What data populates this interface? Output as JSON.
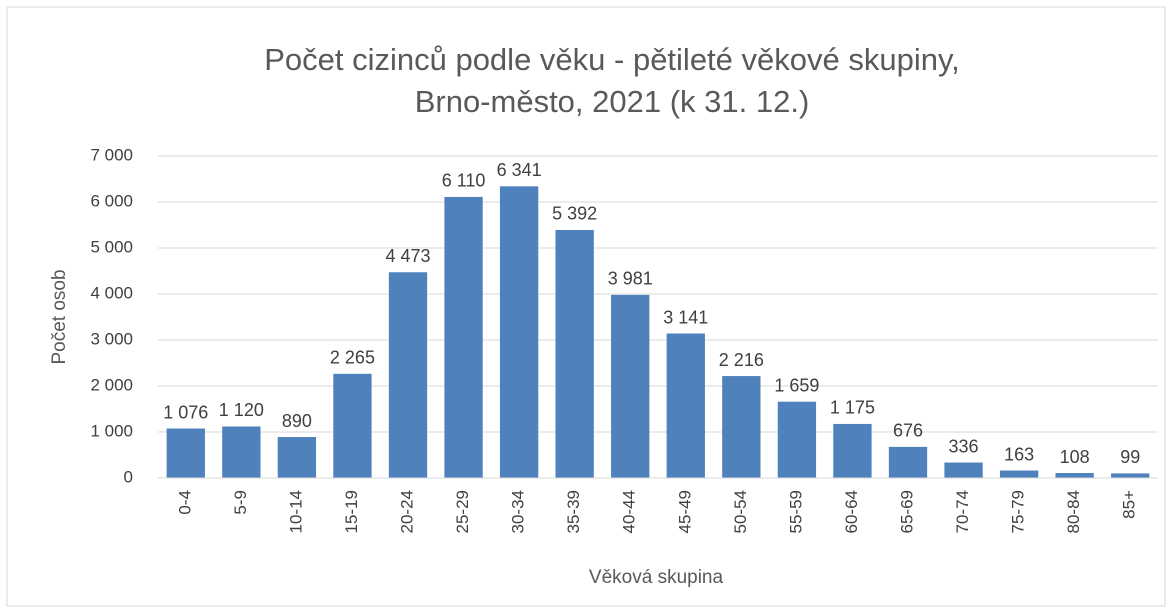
{
  "chart_data": {
    "type": "bar",
    "title": [
      "Počet cizinců podle věku - pětileté věkové skupiny,",
      "Brno-město, 2021 (k 31. 12.)"
    ],
    "xlabel": "Věková skupina",
    "ylabel": "Počet osob",
    "categories": [
      "0-4",
      "5-9",
      "10-14",
      "15-19",
      "20-24",
      "25-29",
      "30-34",
      "35-39",
      "40-44",
      "45-49",
      "50-54",
      "55-59",
      "60-64",
      "65-69",
      "70-74",
      "75-79",
      "80-84",
      "85+"
    ],
    "values": [
      1076,
      1120,
      890,
      2265,
      4473,
      6110,
      6341,
      5392,
      3981,
      3141,
      2216,
      1659,
      1175,
      676,
      336,
      163,
      108,
      99
    ],
    "value_labels": [
      "1 076",
      "1 120",
      "890",
      "2 265",
      "4 473",
      "6 110",
      "6 341",
      "5 392",
      "3 981",
      "3 141",
      "2 216",
      "1 659",
      "1 175",
      "676",
      "336",
      "163",
      "108",
      "99"
    ],
    "color": "#4f81bd",
    "ylim": [
      0,
      7000
    ],
    "yticks": [
      0,
      {
        "value": 1000,
        "label": "1 000"
      },
      {
        "value": 2000,
        "label": "2 000"
      },
      {
        "value": 3000,
        "label": "3 000"
      },
      {
        "value": 4000,
        "label": "4 000"
      },
      {
        "value": 5000,
        "label": "5 000"
      },
      {
        "value": 6000,
        "label": "6 000"
      },
      {
        "value": 7000,
        "label": "7 000"
      }
    ],
    "grid": true
  }
}
